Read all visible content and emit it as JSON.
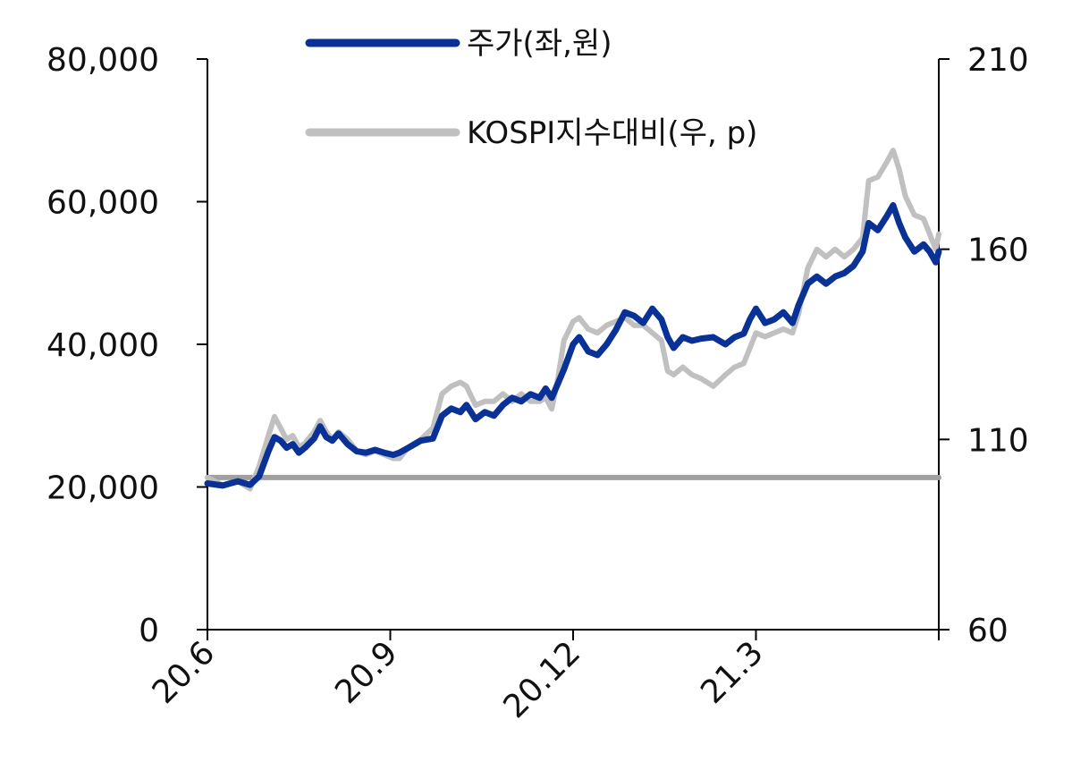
{
  "chart_data": {
    "type": "line",
    "legend_position": "top-center",
    "grid": false,
    "x_ticks": [
      "20.6",
      "20.9",
      "20.12",
      "21.3"
    ],
    "y_left": {
      "ylim": [
        0,
        80000
      ],
      "ticks": [
        "0",
        "20,000",
        "40,000",
        "60,000",
        "80,000"
      ]
    },
    "y_right": {
      "ylim": [
        60,
        210
      ],
      "ticks": [
        "60",
        "110",
        "160",
        "210"
      ]
    },
    "x_domain": [
      0,
      12
    ],
    "series": [
      {
        "name": "주가(좌,원)",
        "axis": "left",
        "color": "#0a3296",
        "points": [
          [
            0,
            20500
          ],
          [
            0.25,
            20200
          ],
          [
            0.5,
            20800
          ],
          [
            0.7,
            20300
          ],
          [
            0.85,
            21500
          ],
          [
            1.0,
            25000
          ],
          [
            1.1,
            27000
          ],
          [
            1.2,
            26500
          ],
          [
            1.3,
            25500
          ],
          [
            1.4,
            26000
          ],
          [
            1.5,
            24800
          ],
          [
            1.6,
            25500
          ],
          [
            1.75,
            26800
          ],
          [
            1.85,
            28500
          ],
          [
            1.95,
            27000
          ],
          [
            2.05,
            26500
          ],
          [
            2.15,
            27500
          ],
          [
            2.3,
            26000
          ],
          [
            2.45,
            25000
          ],
          [
            2.6,
            24800
          ],
          [
            2.75,
            25200
          ],
          [
            2.9,
            24800
          ],
          [
            3.05,
            24500
          ],
          [
            3.15,
            24800
          ],
          [
            3.3,
            25500
          ],
          [
            3.5,
            26500
          ],
          [
            3.7,
            26800
          ],
          [
            3.85,
            30000
          ],
          [
            4.0,
            31000
          ],
          [
            4.15,
            30500
          ],
          [
            4.25,
            31500
          ],
          [
            4.4,
            29500
          ],
          [
            4.55,
            30500
          ],
          [
            4.7,
            30000
          ],
          [
            4.85,
            31500
          ],
          [
            5.0,
            32500
          ],
          [
            5.15,
            32000
          ],
          [
            5.3,
            33000
          ],
          [
            5.45,
            32500
          ],
          [
            5.55,
            33800
          ],
          [
            5.65,
            32500
          ],
          [
            5.75,
            34500
          ],
          [
            5.85,
            36500
          ],
          [
            6.0,
            40000
          ],
          [
            6.1,
            41000
          ],
          [
            6.25,
            39000
          ],
          [
            6.4,
            38500
          ],
          [
            6.55,
            40000
          ],
          [
            6.7,
            42000
          ],
          [
            6.85,
            44500
          ],
          [
            7.0,
            44000
          ],
          [
            7.15,
            43000
          ],
          [
            7.3,
            45000
          ],
          [
            7.45,
            43500
          ],
          [
            7.55,
            41000
          ],
          [
            7.65,
            39500
          ],
          [
            7.8,
            41000
          ],
          [
            7.95,
            40500
          ],
          [
            8.1,
            40800
          ],
          [
            8.3,
            41000
          ],
          [
            8.5,
            40000
          ],
          [
            8.65,
            41000
          ],
          [
            8.8,
            41500
          ],
          [
            8.9,
            43500
          ],
          [
            9.0,
            45000
          ],
          [
            9.15,
            43000
          ],
          [
            9.3,
            43500
          ],
          [
            9.45,
            44500
          ],
          [
            9.6,
            43000
          ],
          [
            9.7,
            45500
          ],
          [
            9.85,
            48500
          ],
          [
            10.0,
            49500
          ],
          [
            10.15,
            48500
          ],
          [
            10.3,
            49500
          ],
          [
            10.45,
            50000
          ],
          [
            10.6,
            51000
          ],
          [
            10.75,
            53000
          ],
          [
            10.85,
            57000
          ],
          [
            11.0,
            56000
          ],
          [
            11.15,
            58000
          ],
          [
            11.25,
            59500
          ],
          [
            11.35,
            57000
          ],
          [
            11.45,
            55000
          ],
          [
            11.6,
            53000
          ],
          [
            11.75,
            54000
          ],
          [
            11.85,
            53000
          ],
          [
            11.95,
            51500
          ],
          [
            12.0,
            53000
          ]
        ]
      },
      {
        "name": "KOSPI지수대비(우, p)",
        "axis": "right",
        "color": "#c0c0c0",
        "points": [
          [
            0,
            100
          ],
          [
            0.25,
            98
          ],
          [
            0.5,
            99
          ],
          [
            0.7,
            97
          ],
          [
            0.85,
            103
          ],
          [
            1.0,
            111
          ],
          [
            1.1,
            116
          ],
          [
            1.2,
            113
          ],
          [
            1.3,
            110
          ],
          [
            1.4,
            111
          ],
          [
            1.5,
            108
          ],
          [
            1.6,
            109
          ],
          [
            1.75,
            112
          ],
          [
            1.85,
            115
          ],
          [
            1.95,
            112
          ],
          [
            2.05,
            110
          ],
          [
            2.15,
            112
          ],
          [
            2.3,
            110
          ],
          [
            2.45,
            107
          ],
          [
            2.6,
            106
          ],
          [
            2.75,
            107
          ],
          [
            2.9,
            106
          ],
          [
            3.05,
            105
          ],
          [
            3.15,
            105
          ],
          [
            3.3,
            108
          ],
          [
            3.5,
            110
          ],
          [
            3.7,
            113
          ],
          [
            3.85,
            122
          ],
          [
            4.0,
            124
          ],
          [
            4.15,
            125
          ],
          [
            4.25,
            124
          ],
          [
            4.4,
            119
          ],
          [
            4.55,
            120
          ],
          [
            4.7,
            120
          ],
          [
            4.85,
            122
          ],
          [
            5.0,
            120
          ],
          [
            5.15,
            122
          ],
          [
            5.3,
            120
          ],
          [
            5.45,
            120
          ],
          [
            5.55,
            121
          ],
          [
            5.65,
            118
          ],
          [
            5.75,
            126
          ],
          [
            5.85,
            136
          ],
          [
            6.0,
            141
          ],
          [
            6.1,
            142
          ],
          [
            6.25,
            139
          ],
          [
            6.4,
            138
          ],
          [
            6.55,
            140
          ],
          [
            6.7,
            141
          ],
          [
            6.85,
            142
          ],
          [
            7.0,
            140
          ],
          [
            7.15,
            140
          ],
          [
            7.3,
            138
          ],
          [
            7.45,
            136
          ],
          [
            7.55,
            128
          ],
          [
            7.65,
            127
          ],
          [
            7.8,
            129
          ],
          [
            7.95,
            127
          ],
          [
            8.1,
            126
          ],
          [
            8.3,
            124
          ],
          [
            8.5,
            127
          ],
          [
            8.65,
            129
          ],
          [
            8.8,
            130
          ],
          [
            8.9,
            134
          ],
          [
            9.0,
            138
          ],
          [
            9.15,
            137
          ],
          [
            9.3,
            138
          ],
          [
            9.45,
            139
          ],
          [
            9.6,
            138
          ],
          [
            9.7,
            143
          ],
          [
            9.85,
            155
          ],
          [
            10.0,
            160
          ],
          [
            10.15,
            158
          ],
          [
            10.3,
            160
          ],
          [
            10.45,
            158
          ],
          [
            10.6,
            160
          ],
          [
            10.75,
            163
          ],
          [
            10.85,
            178
          ],
          [
            11.0,
            179
          ],
          [
            11.15,
            183
          ],
          [
            11.25,
            186
          ],
          [
            11.35,
            181
          ],
          [
            11.45,
            174
          ],
          [
            11.6,
            169
          ],
          [
            11.75,
            168
          ],
          [
            11.85,
            164
          ],
          [
            11.95,
            160
          ],
          [
            12.0,
            164
          ]
        ]
      },
      {
        "axis": "right",
        "color": "#a0a0a0",
        "points": [
          [
            0,
            100
          ],
          [
            12,
            100
          ]
        ]
      }
    ]
  }
}
